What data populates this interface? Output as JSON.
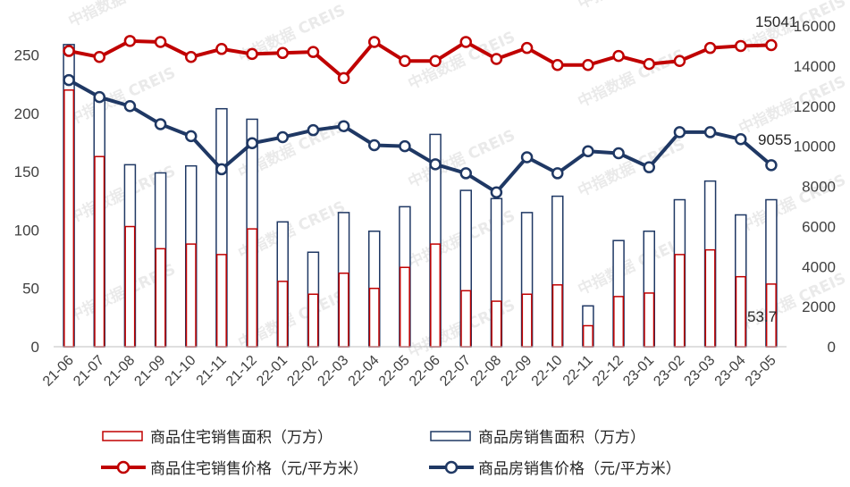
{
  "chart_data": {
    "type": "bar",
    "categories": [
      "21-06",
      "21-07",
      "21-08",
      "21-09",
      "21-10",
      "21-11",
      "21-12",
      "22-01",
      "22-02",
      "22-03",
      "22-04",
      "22-05",
      "22-06",
      "22-07",
      "22-08",
      "22-09",
      "22-10",
      "22-11",
      "22-12",
      "23-01",
      "23-02",
      "23-03",
      "23-04",
      "23-05"
    ],
    "series": [
      {
        "name": "商品住宅销售面积（万方）",
        "type": "bar",
        "axis": "left",
        "color": "#c00000",
        "values": [
          220,
          163,
          103,
          84,
          88,
          79,
          101,
          56,
          45,
          63,
          50,
          68,
          88,
          48,
          39,
          45,
          53,
          18,
          43,
          46,
          79,
          83,
          60,
          53.7
        ]
      },
      {
        "name": "商品房销售面积（万方）",
        "type": "bar",
        "axis": "left",
        "color": "#1f3864",
        "values": [
          259,
          214,
          156,
          149,
          155,
          204,
          195,
          107,
          81,
          115,
          99,
          120,
          182,
          134,
          127,
          115,
          129,
          35,
          91,
          99,
          126,
          142,
          113,
          126
        ]
      },
      {
        "name": "商品住宅销售价格（元/平方米）",
        "type": "line",
        "axis": "right",
        "color": "#c00000",
        "values": [
          14750,
          14450,
          15250,
          15200,
          14450,
          14850,
          14600,
          14650,
          14700,
          13400,
          15200,
          14250,
          14250,
          15200,
          14350,
          14900,
          14050,
          14050,
          14500,
          14100,
          14250,
          14900,
          15000,
          15041
        ]
      },
      {
        "name": "商品房销售价格（元/平方米）",
        "type": "line",
        "axis": "right",
        "color": "#1f3864",
        "values": [
          13300,
          12450,
          12000,
          11100,
          10500,
          8850,
          10150,
          10450,
          10800,
          11000,
          10050,
          10000,
          9100,
          8650,
          7700,
          9450,
          8650,
          9750,
          9650,
          8950,
          10700,
          10700,
          10350,
          9055
        ]
      }
    ],
    "ylim_left": [
      0,
      275
    ],
    "ylim_right": [
      0,
      16000
    ],
    "yticks_left": [
      "0",
      "50",
      "100",
      "150",
      "200",
      "250"
    ],
    "yticks_right": [
      "0",
      "2000",
      "4000",
      "6000",
      "8000",
      "10000",
      "12000",
      "14000",
      "16000"
    ],
    "annotations": [
      "15041",
      "9055",
      "53.7"
    ],
    "legend_position": "bottom",
    "grid": false,
    "watermark": "中指数据 CREIS"
  }
}
